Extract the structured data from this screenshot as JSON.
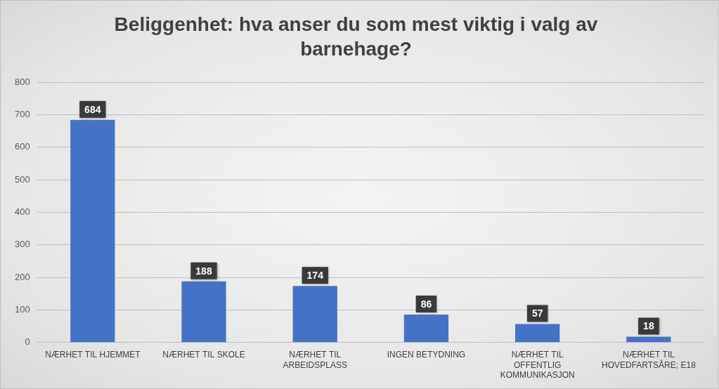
{
  "chart_data": {
    "type": "bar",
    "title": [
      "Beliggenhet: hva anser du som mest viktig i valg av",
      "barnehage?"
    ],
    "categories": [
      "NÆRHET TIL HJEMMET",
      "NÆRHET TIL SKOLE",
      "NÆRHET TIL ARBEIDSPLASS",
      "INGEN BETYDNING",
      "NÆRHET TIL OFFENTLIG KOMMUNIKASJON",
      "NÆRHET TIL HOVEDFARTSÅRE; E18"
    ],
    "values": [
      684,
      188,
      174,
      86,
      57,
      18
    ],
    "color": "#4472c4",
    "ylim": [
      0,
      800
    ],
    "yticks": [
      0,
      100,
      200,
      300,
      400,
      500,
      600,
      700,
      800
    ],
    "grid": true,
    "data_labels": true
  }
}
